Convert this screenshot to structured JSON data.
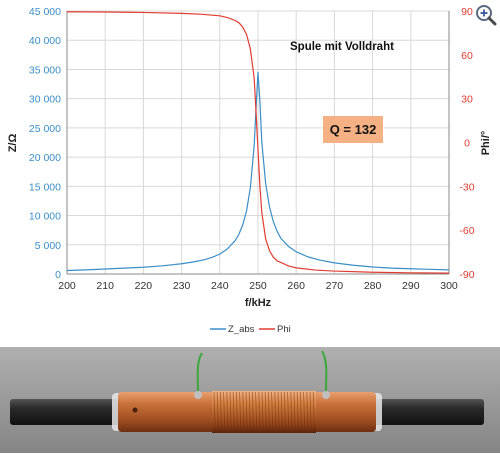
{
  "chart_data": {
    "type": "line",
    "title": "",
    "xlabel": "f/kHz",
    "ylabel": "Z/Ω",
    "y2label": "Phi/°",
    "xlim": [
      200,
      300
    ],
    "ylim": [
      0,
      45000
    ],
    "y2lim": [
      -90,
      90
    ],
    "x_ticks": [
      "200",
      "210",
      "220",
      "230",
      "240",
      "250",
      "260",
      "270",
      "280",
      "290",
      "300"
    ],
    "y_ticks": [
      "0",
      "5 000",
      "10 000",
      "15 000",
      "20 000",
      "25 000",
      "30 000",
      "35 000",
      "40 000",
      "45 000"
    ],
    "y2_ticks": [
      "-90",
      "-60",
      "-30",
      "0",
      "30",
      "60",
      "90"
    ],
    "grid": true,
    "legend_position": "bottom",
    "annotations": [
      {
        "id": "coil",
        "text": "Spule mit Volldraht"
      },
      {
        "id": "q",
        "text": "Q = 132"
      }
    ],
    "series": [
      {
        "name": "Z_abs",
        "axis": "left",
        "color": "#3a8fc7",
        "x": [
          200,
          205,
          210,
          215,
          220,
          225,
          230,
          233,
          236,
          238,
          240,
          242,
          244,
          245,
          246,
          247,
          248,
          249,
          249.5,
          250,
          250.5,
          251,
          252,
          253,
          254,
          255,
          256,
          258,
          260,
          263,
          266,
          270,
          275,
          280,
          285,
          290,
          295,
          300
        ],
        "values": [
          600,
          700,
          850,
          1000,
          1150,
          1400,
          1750,
          2050,
          2450,
          2850,
          3400,
          4300,
          5700,
          6800,
          8400,
          10800,
          14800,
          22000,
          28500,
          34500,
          29500,
          22500,
          15500,
          11500,
          9000,
          7300,
          6100,
          4700,
          3800,
          2950,
          2400,
          1900,
          1500,
          1200,
          1000,
          900,
          800,
          700
        ]
      },
      {
        "name": "Phi",
        "axis": "right",
        "color": "#e03c31",
        "x": [
          200,
          210,
          220,
          230,
          235,
          240,
          242,
          244,
          245,
          246,
          247,
          248,
          249,
          249.5,
          250,
          250.5,
          251,
          252,
          253,
          254,
          255,
          258,
          260,
          265,
          270,
          280,
          290,
          300
        ],
        "values": [
          89.5,
          89.3,
          89.0,
          88.4,
          87.8,
          86.7,
          85.5,
          83.5,
          82.0,
          79.0,
          74.0,
          64.0,
          44.0,
          20.0,
          -5.0,
          -30.0,
          -48.0,
          -66.0,
          -74.0,
          -78.5,
          -81.0,
          -84.5,
          -85.8,
          -87.3,
          -88.0,
          -88.8,
          -89.2,
          -89.4
        ]
      }
    ]
  },
  "photo_caption": "",
  "zoom_icon": "magnifier-plus-icon",
  "colors": {
    "grid": "#d9d9d9",
    "left_axis_text": "#3a8fc7",
    "right_axis_text": "#e03c31",
    "q_box": "#f5b184",
    "photo_bg": "#9c9c9c"
  }
}
